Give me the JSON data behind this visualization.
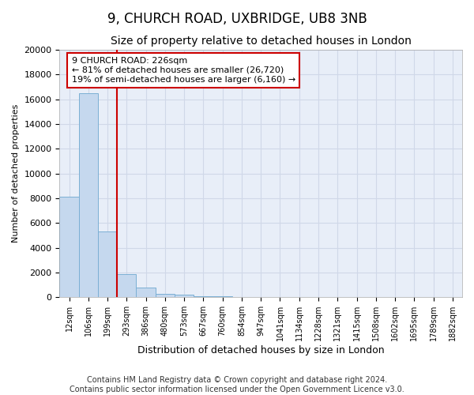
{
  "title1": "9, CHURCH ROAD, UXBRIDGE, UB8 3NB",
  "title2": "Size of property relative to detached houses in London",
  "xlabel": "Distribution of detached houses by size in London",
  "ylabel": "Number of detached properties",
  "bar_labels": [
    "12sqm",
    "106sqm",
    "199sqm",
    "293sqm",
    "386sqm",
    "480sqm",
    "573sqm",
    "667sqm",
    "760sqm",
    "854sqm",
    "947sqm",
    "1041sqm",
    "1134sqm",
    "1228sqm",
    "1321sqm",
    "1415sqm",
    "1508sqm",
    "1602sqm",
    "1695sqm",
    "1789sqm",
    "1882sqm"
  ],
  "bar_values": [
    8100,
    16500,
    5300,
    1850,
    750,
    280,
    220,
    50,
    50,
    0,
    0,
    0,
    0,
    0,
    0,
    0,
    0,
    0,
    0,
    0,
    0
  ],
  "bar_color": "#c5d8ee",
  "bar_edge_color": "#7bafd4",
  "annotation_text": "9 CHURCH ROAD: 226sqm\n← 81% of detached houses are smaller (26,720)\n19% of semi-detached houses are larger (6,160) →",
  "red_line_color": "#cc0000",
  "annotation_box_color": "#ffffff",
  "annotation_box_edge_color": "#cc0000",
  "grid_color": "#d0d8e8",
  "background_color": "#e8eef8",
  "ylim": [
    0,
    20000
  ],
  "yticks": [
    0,
    2000,
    4000,
    6000,
    8000,
    10000,
    12000,
    14000,
    16000,
    18000,
    20000
  ],
  "footnote": "Contains HM Land Registry data © Crown copyright and database right 2024.\nContains public sector information licensed under the Open Government Licence v3.0.",
  "title1_fontsize": 12,
  "title2_fontsize": 10,
  "ylabel_fontsize": 8,
  "xlabel_fontsize": 9,
  "tick_fontsize": 7,
  "annotation_fontsize": 8,
  "footnote_fontsize": 7
}
